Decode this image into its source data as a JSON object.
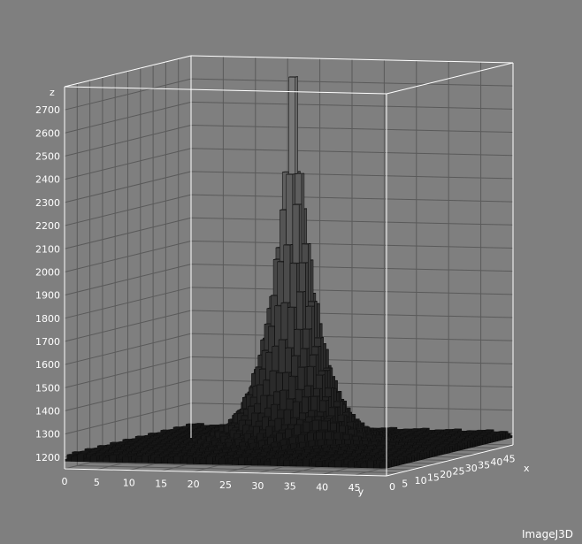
{
  "chart_data": {
    "type": "surface3d",
    "title": "",
    "axes": {
      "z": {
        "label": "z",
        "ticks": [
          1200,
          1300,
          1400,
          1500,
          1600,
          1700,
          1800,
          1900,
          2000,
          2100,
          2200,
          2300,
          2400,
          2500,
          2600,
          2700
        ],
        "range": [
          1150,
          2800
        ]
      },
      "y": {
        "label": "y",
        "ticks": [
          0,
          5,
          10,
          15,
          20,
          25,
          30,
          35,
          40,
          45
        ],
        "range": [
          0,
          50
        ]
      },
      "x": {
        "label": "x",
        "ticks": [
          0,
          5,
          10,
          15,
          20,
          25,
          30,
          35,
          40,
          45
        ],
        "range": [
          0,
          50
        ]
      }
    },
    "surface": {
      "peak": {
        "x": 25,
        "y": 25,
        "z": 2790
      },
      "baseline_z": 1190,
      "grid_size": 50,
      "shape": "sharp central peak (cusp-like)"
    },
    "grid": true,
    "colors": {
      "background": "#7f7f7f",
      "frame": "#ffffff",
      "grid": "#5a5a5a",
      "surface_low": "#141414",
      "surface_high": "#8a8a8a"
    }
  },
  "watermark": "ImageJ3D"
}
